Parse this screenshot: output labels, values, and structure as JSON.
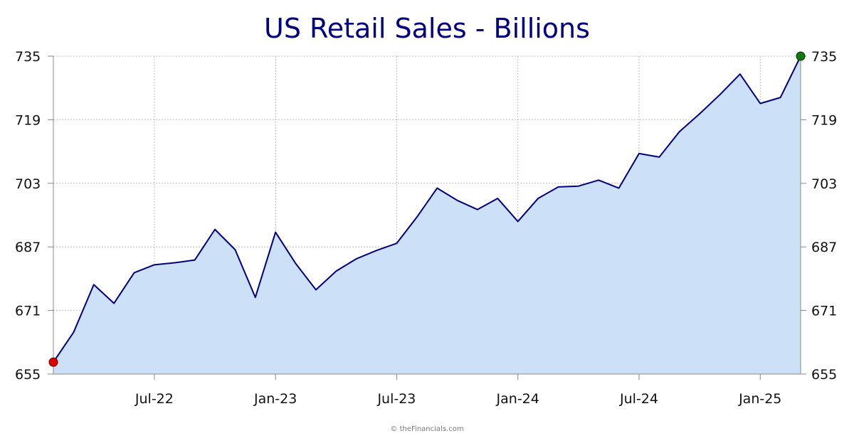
{
  "chart_data": {
    "type": "area",
    "title": "US Retail Sales - Billions",
    "xlabel": "",
    "ylabel": "",
    "ylim": [
      655,
      735
    ],
    "yticks": [
      655,
      671,
      687,
      703,
      719,
      735
    ],
    "y_axis_sides": "left-and-right",
    "grid": true,
    "xticks": [
      {
        "label": "Jul-22",
        "index": 5
      },
      {
        "label": "Jan-23",
        "index": 11
      },
      {
        "label": "Jul-23",
        "index": 17
      },
      {
        "label": "Jan-24",
        "index": 23
      },
      {
        "label": "Jul-24",
        "index": 29
      },
      {
        "label": "Jan-25",
        "index": 35
      }
    ],
    "series": [
      {
        "values": [
          658.0,
          665.5,
          677.5,
          672.8,
          680.5,
          682.5,
          683.0,
          683.7,
          691.4,
          686.3,
          674.3,
          690.7,
          682.8,
          676.2,
          680.9,
          684.0,
          686.1,
          687.9,
          694.5,
          701.8,
          698.7,
          696.4,
          699.2,
          693.4,
          699.2,
          702.1,
          702.3,
          703.8,
          701.8,
          710.5,
          709.6,
          716.0,
          720.5,
          725.3,
          730.5,
          723.1,
          724.6,
          735.0
        ]
      }
    ],
    "colors": {
      "line": "#000080",
      "fill": "#cce0f7",
      "start_marker": "#dd0000",
      "end_marker": "#117711",
      "title": "#000080",
      "grid": "#bbbbbb"
    },
    "markers": {
      "start": "red-dot",
      "end": "green-dot"
    }
  },
  "credit": "© theFinancials.com"
}
